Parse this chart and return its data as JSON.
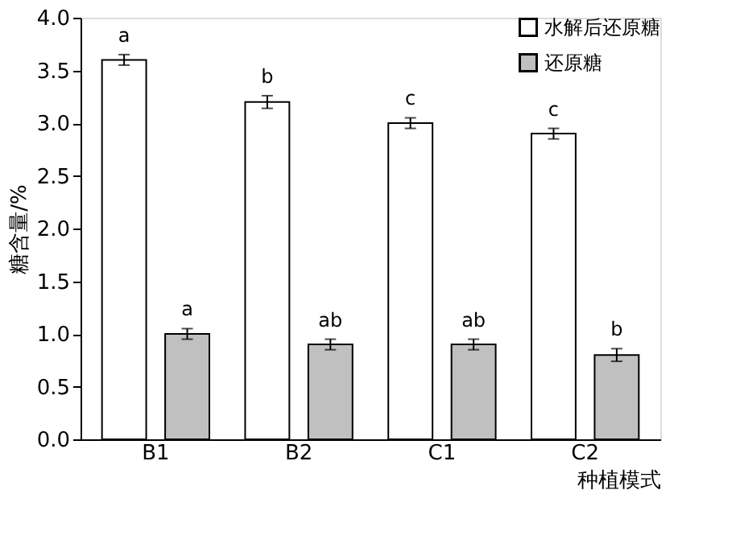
{
  "chart_data": {
    "type": "bar",
    "xlabel": "种植模式",
    "ylabel": "糖含量/%",
    "categories": [
      "B1",
      "B2",
      "C1",
      "C2"
    ],
    "series": [
      {
        "name": "水解后还原糖",
        "color": "#ffffff",
        "values": [
          3.6,
          3.2,
          3.0,
          2.9
        ],
        "errors": [
          0.05,
          0.06,
          0.05,
          0.05
        ]
      },
      {
        "name": "还原糖",
        "color": "#c0c0c0",
        "values": [
          1.0,
          0.9,
          0.9,
          0.8
        ],
        "errors": [
          0.05,
          0.05,
          0.05,
          0.06
        ]
      }
    ],
    "ylim": [
      0,
      4
    ],
    "yticks": [
      {
        "value": 0,
        "label": "0.0"
      },
      {
        "value": 0.5,
        "label": "0.5"
      },
      {
        "value": 1,
        "label": "1.0"
      },
      {
        "value": 1.5,
        "label": "1.5"
      },
      {
        "value": 2,
        "label": "2.0"
      },
      {
        "value": 2.5,
        "label": "2.5"
      },
      {
        "value": 3,
        "label": "3.0"
      },
      {
        "value": 3.5,
        "label": "3.5"
      },
      {
        "value": 4,
        "label": "4.0"
      }
    ],
    "annotations": [
      "a",
      "b",
      "c",
      "c",
      "a",
      "ab",
      "ab",
      "b"
    ],
    "legend": "top right",
    "grid": false
  }
}
